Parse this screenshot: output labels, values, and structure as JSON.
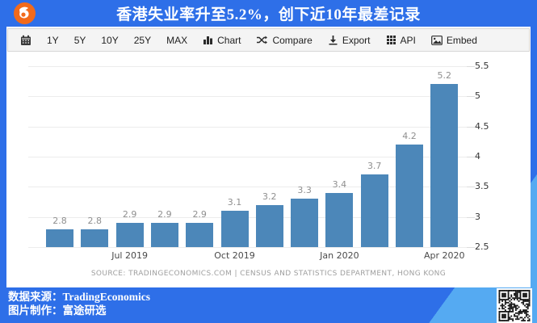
{
  "header": {
    "title": "香港失业率升至5.2%，创下近10年最差记录"
  },
  "toolbar": {
    "calendar_icon": "calendar-icon",
    "ranges": [
      "1Y",
      "5Y",
      "10Y",
      "25Y",
      "MAX"
    ],
    "tools": [
      {
        "label": "Chart",
        "icon": "bar-chart-icon"
      },
      {
        "label": "Compare",
        "icon": "shuffle-icon"
      },
      {
        "label": "Export",
        "icon": "download-icon"
      },
      {
        "label": "API",
        "icon": "grid-icon"
      },
      {
        "label": "Embed",
        "icon": "image-icon"
      }
    ]
  },
  "chart_data": {
    "type": "bar",
    "title": "",
    "values": [
      2.8,
      2.8,
      2.9,
      2.9,
      2.9,
      3.1,
      3.2,
      3.3,
      3.4,
      3.7,
      4.2,
      5.2
    ],
    "bar_value_labels": [
      "2.8",
      "2.8",
      "2.9",
      "2.9",
      "2.9",
      "3.1",
      "3.2",
      "3.3",
      "3.4",
      "3.7",
      "4.2",
      "5.2"
    ],
    "x_tick_labels": [
      {
        "label": "Jul 2019",
        "bar_index": 2
      },
      {
        "label": "Oct 2019",
        "bar_index": 5
      },
      {
        "label": "Jan 2020",
        "bar_index": 8
      },
      {
        "label": "Apr 2020",
        "bar_index": 11
      }
    ],
    "ylim": [
      2.5,
      5.5
    ],
    "yticks": [
      2.5,
      3,
      3.5,
      4,
      4.5,
      5,
      5.5
    ],
    "grid": true,
    "legend": "none",
    "bar_color": "#4C87B9",
    "source": "SOURCE: TRADINGECONOMICS.COM | CENSUS AND STATISTICS DEPARTMENT, HONG KONG"
  },
  "footer": {
    "credit_line1": "数据来源：TradingEconomics",
    "credit_line2": "图片制作：富途研选"
  },
  "colors": {
    "frame_dark_blue": "#2E6FE8",
    "frame_light_blue": "#55AAF2",
    "bar_blue": "#4C87B9",
    "toolbar_bg": "#f4f4f4",
    "logo_orange": "#F26A1B",
    "title_text": "#ffffff"
  }
}
